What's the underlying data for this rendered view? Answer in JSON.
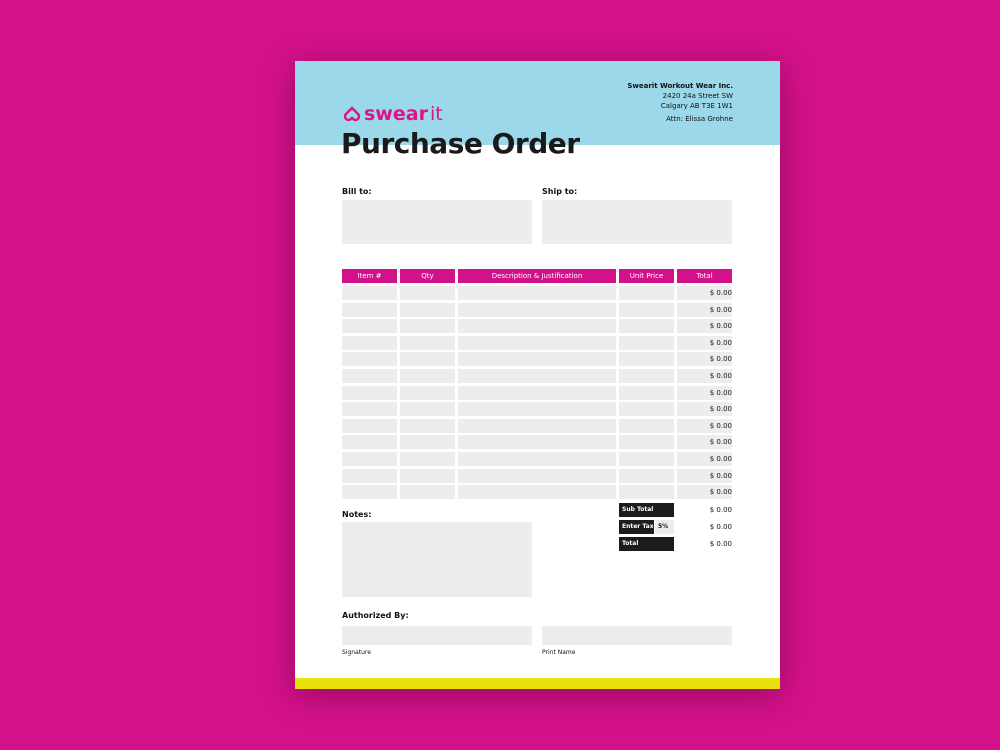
{
  "brand": {
    "logo_text_a": "swear",
    "logo_text_b": "it",
    "icon": "swearit-logo-icon"
  },
  "title": "Purchase Order",
  "address": {
    "company": "Swearit Workout Wear Inc.",
    "street": "2420 24a Street SW",
    "city": "Calgary AB T3E 1W1",
    "attn": "Attn:  Elissa Grohne"
  },
  "bill_to": "Bill to:",
  "ship_to": "Ship to:",
  "table": {
    "headers": [
      "Item #",
      "Qty",
      "Description & Justification",
      "Unit Price",
      "Total"
    ],
    "row_totals": [
      "$ 0.00",
      "$ 0.00",
      "$ 0.00",
      "$ 0.00",
      "$ 0.00",
      "$ 0.00",
      "$ 0.00",
      "$ 0.00",
      "$ 0.00",
      "$ 0.00",
      "$ 0.00",
      "$ 0.00",
      "$ 0.00"
    ]
  },
  "notes": "Notes:",
  "summary": {
    "subtotal_label": "Sub Total",
    "subtotal": "$ 0.00",
    "tax_label": "Enter Tax",
    "tax_rate": "5%",
    "tax": "$ 0.00",
    "total_label": "Total",
    "total": "$ 0.00"
  },
  "authorized": {
    "label": "Authorized By:",
    "signature": "Signature",
    "print_name": "Print Name"
  },
  "colors": {
    "background": "#d3118a",
    "header": "#9ad8ea",
    "accent": "#d3118a",
    "footer": "#e8e20c"
  }
}
